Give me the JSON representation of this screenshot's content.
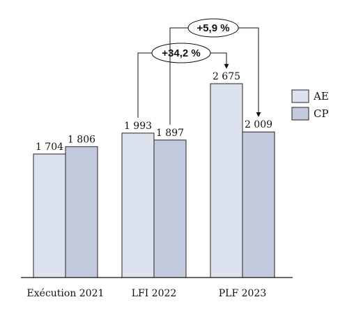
{
  "chart_data": {
    "type": "bar",
    "categories": [
      "Exécution 2021",
      "LFI 2022",
      "PLF 2023"
    ],
    "series": [
      {
        "name": "AE",
        "values": [
          1704,
          1993,
          2675
        ],
        "labels": [
          "1 704",
          "1 993",
          "2 675"
        ]
      },
      {
        "name": "CP",
        "values": [
          1806,
          1897,
          2009
        ],
        "labels": [
          "1 806",
          "1 897",
          "2 009"
        ]
      }
    ],
    "ylim": [
      0,
      2800
    ],
    "grid": false,
    "legend": "right",
    "colors": {
      "AE": "#dde3ee",
      "CP": "#c2cadd",
      "outline": "#222222"
    },
    "annotations": [
      {
        "text": "+34,2 %",
        "from_category": "LFI 2022",
        "from_series": "AE",
        "to_category": "PLF 2023",
        "to_series": "AE"
      },
      {
        "text": "+5,9 %",
        "from_category": "LFI 2022",
        "from_series": "CP",
        "to_category": "PLF 2023",
        "to_series": "CP"
      }
    ]
  }
}
